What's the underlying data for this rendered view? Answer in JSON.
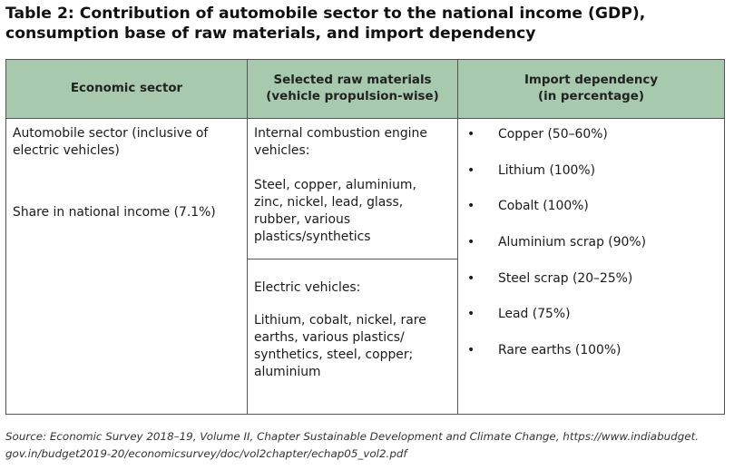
{
  "title": {
    "line1": "Table 2: Contribution of automobile sector to the national income (GDP),",
    "line2": "consumption base of raw materials, and import dependency"
  },
  "headers": {
    "col1": "Economic sector",
    "col2_line1": "Selected raw materials",
    "col2_line2": "(vehicle propulsion-wise)",
    "col3_line1": "Import dependency",
    "col3_line2": "(in percentage)"
  },
  "sector": {
    "line1": "Automobile sector (inclusive of",
    "line2": "electric vehicles)",
    "share": "Share in national income (7.1%)"
  },
  "ice": {
    "heading_line1": "Internal combustion engine",
    "heading_line2": "vehicles:",
    "materials": [
      "Steel, copper, aluminium,",
      "zinc, nickel, lead, glass,",
      "rubber, various",
      "plastics/synthetics"
    ]
  },
  "ev": {
    "heading": "Electric vehicles:",
    "materials": [
      "Lithium, cobalt, nickel, rare",
      "earths, various plastics/",
      "synthetics, steel, copper;",
      "aluminium"
    ]
  },
  "bullet_symbol": "•",
  "imports": [
    "Copper (50–60%)",
    "Lithium (100%)",
    "Cobalt (100%)",
    "Aluminium scrap (90%)",
    "Steel scrap (20–25%)",
    "Lead (75%)",
    "Rare earths (100%)"
  ],
  "source": {
    "line1": "Source: Economic Survey 2018–19, Volume II, Chapter Sustainable Development and Climate Change, https://www.indiabudget.",
    "line2": "gov.in/budget2019-20/economicsurvey/doc/vol2chapter/echap05_vol2.pdf"
  }
}
